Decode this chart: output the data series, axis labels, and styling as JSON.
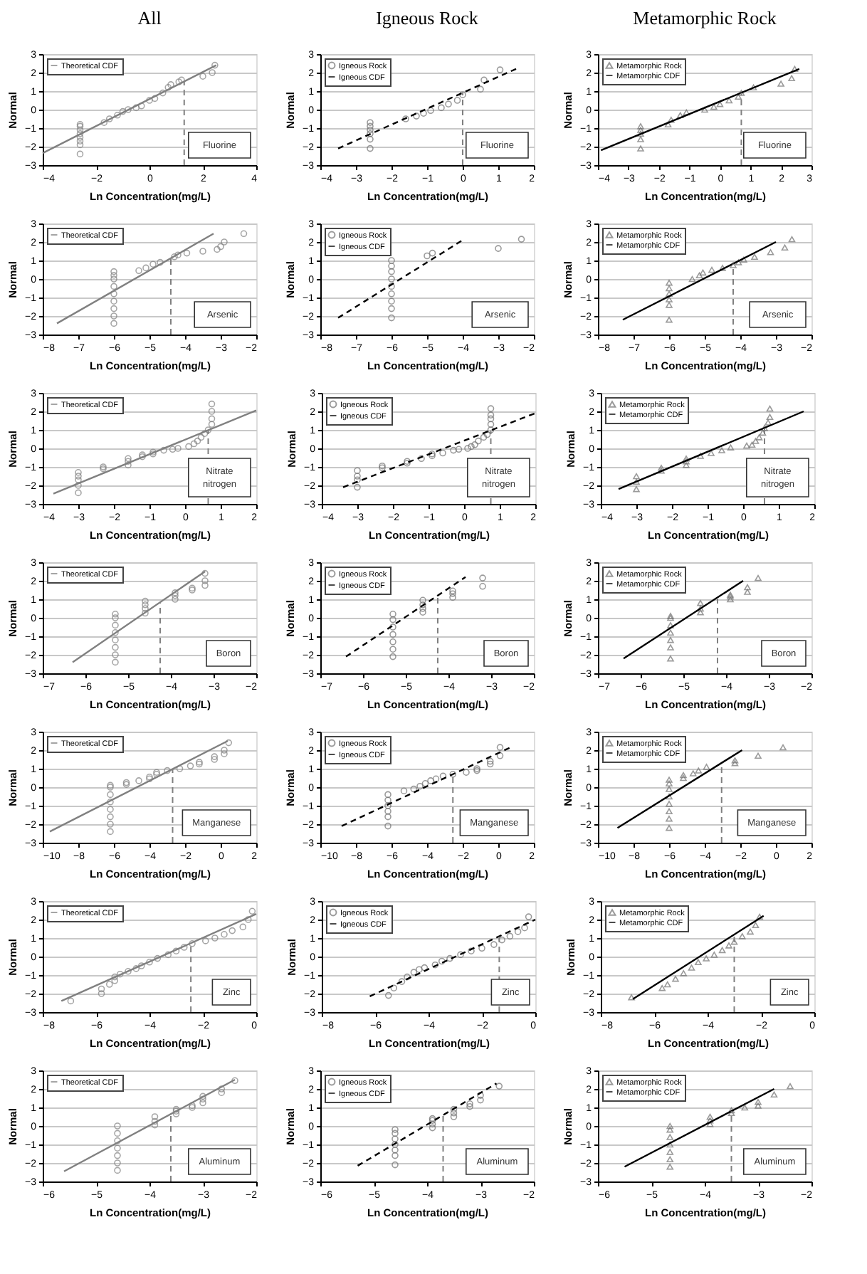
{
  "chart_data": [
    {
      "type": "scatter",
      "title": "All",
      "xlabel": "Ln Concentration(mg/L)",
      "ylabel": "Normal",
      "xlim": [
        -4,
        4
      ],
      "xticks": [
        -4,
        -2,
        0,
        2,
        4
      ],
      "ylim": [
        -3,
        3
      ],
      "yticks": [
        -3,
        -2,
        -1,
        0,
        1,
        2,
        3
      ],
      "grid": "y",
      "legend": "top left",
      "annotations": [
        "Fluorine"
      ],
      "ref_lines": [
        {
          "axis": "x",
          "value": 1.3,
          "color": "#808080",
          "line_style": "dashed"
        }
      ],
      "series": [
        {
          "type": "scatter",
          "marker": "circle",
          "color": "#808080",
          "x": [
            -2.6,
            -2.6,
            -2.6,
            -2.6,
            -2.6,
            -2.6,
            -2.6,
            -2.6,
            -1.7,
            -1.5,
            -1.2,
            -1,
            -0.8,
            -0.5,
            -0.3,
            0,
            0.2,
            0.5,
            0.7,
            0.8,
            1.1,
            1.2,
            2,
            2.35,
            2.45
          ],
          "values": [
            -2.4,
            -1.9,
            -1.7,
            -1.5,
            -1.3,
            -1.1,
            -0.9,
            -0.8,
            -0.7,
            -0.5,
            -0.3,
            -0.1,
            0,
            0.1,
            0.2,
            0.5,
            0.6,
            0.9,
            1.2,
            1.35,
            1.5,
            1.6,
            1.8,
            2,
            2.4
          ]
        },
        {
          "name": "Theoretical CDF",
          "type": "line",
          "line_style": "solid",
          "color": "#808080",
          "x": [
            -4,
            2.5
          ],
          "values": [
            -2.35,
            2.4
          ]
        }
      ]
    },
    {
      "type": "scatter",
      "title": "Igneous Rock",
      "xlabel": "Ln Concentration(mg/L)",
      "ylabel": "Normal",
      "xlim": [
        -4,
        2
      ],
      "xticks": [
        -4,
        -3,
        -2,
        -1,
        0,
        1,
        2
      ],
      "ylim": [
        -3,
        3
      ],
      "yticks": [
        -3,
        -2,
        -1,
        0,
        1,
        2,
        3
      ],
      "grid": "y",
      "legend": "top left",
      "annotations": [
        "Fluorine"
      ],
      "ref_lines": [
        {
          "axis": "x",
          "value": 0,
          "color": "#808080",
          "line_style": "dashed"
        }
      ],
      "series": [
        {
          "name": "Igneous Rock",
          "type": "scatter",
          "marker": "circle",
          "color": "#707070",
          "x": [
            -2.6,
            -2.6,
            -2.6,
            -2.6,
            -2.6,
            -2.6,
            -1.6,
            -1.3,
            -1.1,
            -0.9,
            -0.6,
            -0.4,
            -0.15,
            0,
            0.5,
            0.6,
            1.05
          ],
          "values": [
            -2.1,
            -1.6,
            -1.3,
            -1.1,
            -0.9,
            -0.7,
            -0.5,
            -0.35,
            -0.2,
            -0.05,
            0.1,
            0.3,
            0.5,
            0.8,
            1.1,
            1.6,
            2.15
          ]
        },
        {
          "name": "Igneous CDF",
          "type": "line",
          "line_style": "dashed",
          "color": "#000000",
          "x": [
            -3.5,
            1.5
          ],
          "values": [
            -2.1,
            2.2
          ]
        }
      ]
    },
    {
      "type": "scatter",
      "title": "Metamorphic Rock",
      "xlabel": "Ln Concentration(mg/L)",
      "ylabel": "Normal",
      "xlim": [
        -4,
        3
      ],
      "xticks": [
        -4,
        -3,
        -2,
        -1,
        0,
        1,
        2,
        3
      ],
      "ylim": [
        -3,
        3
      ],
      "yticks": [
        -3,
        -2,
        -1,
        0,
        1,
        2,
        3
      ],
      "grid": "y",
      "legend": "top left",
      "annotations": [
        "Fluorine"
      ],
      "ref_lines": [
        {
          "axis": "x",
          "value": 0.7,
          "color": "#808080",
          "line_style": "dashed"
        }
      ],
      "series": [
        {
          "name": "Metamorphic Rock",
          "type": "scatter",
          "marker": "triangle",
          "color": "#707070",
          "x": [
            -2.6,
            -2.6,
            -2.6,
            -2.6,
            -2.6,
            -1.7,
            -1.6,
            -1.3,
            -1.1,
            -0.5,
            -0.2,
            0,
            0.3,
            0.6,
            0.7,
            1.1,
            2,
            2.35,
            2.45
          ],
          "values": [
            -2.1,
            -1.6,
            -1.3,
            -1.1,
            -0.9,
            -0.8,
            -0.55,
            -0.3,
            -0.15,
            0,
            0.15,
            0.3,
            0.5,
            0.7,
            0.9,
            1.2,
            1.4,
            1.7,
            2.2
          ]
        },
        {
          "name": "Metamorphic CDF",
          "type": "line",
          "line_style": "solid",
          "color": "#000000",
          "x": [
            -3.9,
            2.6
          ],
          "values": [
            -2.2,
            2.2
          ]
        }
      ]
    },
    {
      "type": "scatter",
      "xlabel": "Ln Concentration(mg/L)",
      "ylabel": "Normal",
      "xlim": [
        -8,
        -2
      ],
      "xticks": [
        -8,
        -7,
        -6,
        -5,
        -4,
        -3,
        -2
      ],
      "ylim": [
        -3,
        3
      ],
      "yticks": [
        -3,
        -2,
        -1,
        0,
        1,
        2,
        3
      ],
      "grid": "y",
      "legend": "top left",
      "annotations": [
        "Arsenic"
      ],
      "ref_lines": [
        {
          "axis": "x",
          "value": -4.4,
          "color": "#808080",
          "line_style": "dashed"
        }
      ],
      "series": [
        {
          "type": "scatter",
          "marker": "circle",
          "color": "#808080",
          "x": [
            -6,
            -6,
            -6,
            -6,
            -6,
            -6,
            -6,
            -6,
            -6,
            -5.3,
            -5.1,
            -4.9,
            -4.7,
            -4.3,
            -4.2,
            -3.95,
            -3.5,
            -3.1,
            -3,
            -2.9,
            -2.35
          ],
          "values": [
            -2.4,
            -2,
            -1.6,
            -1.2,
            -0.8,
            -0.4,
            0,
            0.2,
            0.4,
            0.45,
            0.6,
            0.8,
            0.9,
            1.2,
            1.3,
            1.4,
            1.5,
            1.6,
            1.75,
            2,
            2.45
          ]
        },
        {
          "name": "Theoretical CDF",
          "type": "line",
          "line_style": "solid",
          "color": "#808080",
          "x": [
            -7.6,
            -3.2
          ],
          "values": [
            -2.4,
            2.45
          ]
        }
      ]
    },
    {
      "type": "scatter",
      "xlabel": "Ln Concentration(mg/L)",
      "ylabel": "Normal",
      "xlim": [
        -8,
        -2
      ],
      "xticks": [
        -8,
        -7,
        -6,
        -5,
        -4,
        -3,
        -2
      ],
      "ylim": [
        -3,
        3
      ],
      "yticks": [
        -3,
        -2,
        -1,
        0,
        1,
        2,
        3
      ],
      "grid": "y",
      "legend": "top left",
      "annotations": [
        "Arsenic"
      ],
      "series": [
        {
          "name": "Igneous Rock",
          "type": "scatter",
          "marker": "circle",
          "color": "#707070",
          "x": [
            -6,
            -6,
            -6,
            -6,
            -6,
            -6,
            -6,
            -6,
            -6,
            -5,
            -4.85,
            -3,
            -2.35
          ],
          "values": [
            -2.1,
            -1.6,
            -1.2,
            -0.8,
            -0.4,
            0,
            0.4,
            0.7,
            1,
            1.25,
            1.4,
            1.65,
            2.15
          ]
        },
        {
          "name": "Igneous CDF",
          "type": "line",
          "line_style": "dashed",
          "color": "#000000",
          "x": [
            -7.5,
            -4
          ],
          "values": [
            -2.1,
            2.1
          ]
        }
      ]
    },
    {
      "type": "scatter",
      "xlabel": "Ln Concentration(mg/L)",
      "ylabel": "Normal",
      "xlim": [
        -8,
        -2
      ],
      "xticks": [
        -8,
        -7,
        -6,
        -5,
        -4,
        -3,
        -2
      ],
      "ylim": [
        -3,
        3
      ],
      "yticks": [
        -3,
        -2,
        -1,
        0,
        1,
        2,
        3
      ],
      "grid": "y",
      "legend": "top left",
      "annotations": [
        "Arsenic"
      ],
      "ref_lines": [
        {
          "axis": "x",
          "value": -4.2,
          "color": "#808080",
          "line_style": "dashed"
        }
      ],
      "series": [
        {
          "name": "Metamorphic Rock",
          "type": "scatter",
          "marker": "triangle",
          "color": "#707070",
          "x": [
            -6,
            -6,
            -6,
            -6,
            -6,
            -6,
            -5.35,
            -5.15,
            -5.05,
            -4.8,
            -4.5,
            -4.2,
            -4.05,
            -3.9,
            -3.6,
            -3.15,
            -2.75,
            -2.55
          ],
          "values": [
            -2.2,
            -1.4,
            -1.1,
            -0.8,
            -0.5,
            -0.2,
            0,
            0.2,
            0.35,
            0.5,
            0.6,
            0.75,
            0.9,
            1.05,
            1.2,
            1.45,
            1.7,
            2.15
          ]
        },
        {
          "name": "Metamorphic CDF",
          "type": "line",
          "line_style": "solid",
          "color": "#000000",
          "x": [
            -7.3,
            -3
          ],
          "values": [
            -2.2,
            2
          ]
        }
      ]
    },
    {
      "type": "scatter",
      "xlabel": "Ln Concentration(mg/L)",
      "ylabel": "Normal",
      "xlim": [
        -4,
        2
      ],
      "xticks": [
        -4,
        -3,
        -2,
        -1,
        0,
        1,
        2
      ],
      "ylim": [
        -3,
        3
      ],
      "yticks": [
        -3,
        -2,
        -1,
        0,
        1,
        2,
        3
      ],
      "grid": "y",
      "legend": "top left",
      "annotations": [
        "Nitrate nitrogen"
      ],
      "ref_lines": [
        {
          "axis": "x",
          "value": 0.65,
          "color": "#808080",
          "line_style": "dashed"
        }
      ],
      "series": [
        {
          "type": "scatter",
          "marker": "circle",
          "color": "#808080",
          "x": [
            -3,
            -3,
            -3,
            -3,
            -3,
            -2.3,
            -2.3,
            -1.6,
            -1.6,
            -1.6,
            -1.2,
            -1.2,
            -0.9,
            -0.9,
            -0.6,
            -0.35,
            -0.2,
            0.1,
            0.25,
            0.35,
            0.45,
            0.55,
            0.65,
            0.75,
            0.75,
            0.75,
            0.75
          ],
          "values": [
            -2.4,
            -2,
            -1.7,
            -1.5,
            -1.3,
            -1.1,
            -1,
            -0.9,
            -0.7,
            -0.55,
            -0.45,
            -0.35,
            -0.3,
            -0.2,
            -0.1,
            -0.05,
            0,
            0.1,
            0.25,
            0.4,
            0.6,
            0.8,
            1,
            1.3,
            1.6,
            2,
            2.4
          ]
        },
        {
          "name": "Theoretical CDF",
          "type": "line",
          "line_style": "solid",
          "color": "#808080",
          "x": [
            -3.7,
            2
          ],
          "values": [
            -2.45,
            2.05
          ]
        }
      ]
    },
    {
      "type": "scatter",
      "xlabel": "Ln Concentration(mg/L)",
      "ylabel": "Normal",
      "xlim": [
        -4,
        2
      ],
      "xticks": [
        -4,
        -3,
        -2,
        -1,
        0,
        1,
        2
      ],
      "ylim": [
        -3,
        3
      ],
      "yticks": [
        -3,
        -2,
        -1,
        0,
        1,
        2,
        3
      ],
      "grid": "y",
      "legend": "top left",
      "annotations": [
        "Nitrate nitrogen"
      ],
      "ref_lines": [
        {
          "axis": "x",
          "value": 0.75,
          "color": "#808080",
          "line_style": "dashed"
        }
      ],
      "series": [
        {
          "name": "Igneous Rock",
          "type": "scatter",
          "marker": "circle",
          "color": "#707070",
          "x": [
            -3,
            -3,
            -3,
            -3,
            -2.3,
            -2.3,
            -1.6,
            -1.6,
            -1.2,
            -0.9,
            -0.9,
            -0.6,
            -0.3,
            -0.15,
            0.1,
            0.2,
            0.3,
            0.4,
            0.55,
            0.65,
            0.75,
            0.75,
            0.75,
            0.75,
            0.75
          ],
          "values": [
            -2.1,
            -1.7,
            -1.5,
            -1.2,
            -1.05,
            -0.95,
            -0.8,
            -0.7,
            -0.55,
            -0.4,
            -0.3,
            -0.25,
            -0.1,
            -0.05,
            0,
            0.1,
            0.2,
            0.4,
            0.6,
            0.75,
            1,
            1.3,
            1.6,
            1.8,
            2.15
          ]
        },
        {
          "name": "Igneous CDF",
          "type": "line",
          "line_style": "dashed",
          "color": "#000000",
          "x": [
            -3.4,
            2
          ],
          "values": [
            -2.1,
            1.9
          ]
        }
      ]
    },
    {
      "type": "scatter",
      "xlabel": "Ln Concentration(mg/L)",
      "ylabel": "Normal",
      "xlim": [
        -4,
        2
      ],
      "xticks": [
        -4,
        -3,
        -2,
        -1,
        0,
        1,
        2
      ],
      "ylim": [
        -3,
        3
      ],
      "yticks": [
        -3,
        -2,
        -1,
        0,
        1,
        2,
        3
      ],
      "grid": "y",
      "legend": "top left",
      "annotations": [
        "Nitrate nitrogen"
      ],
      "ref_lines": [
        {
          "axis": "x",
          "value": 0.6,
          "color": "#808080",
          "line_style": "dashed"
        }
      ],
      "series": [
        {
          "name": "Metamorphic Rock",
          "type": "scatter",
          "marker": "triangle",
          "color": "#707070",
          "x": [
            -3,
            -3,
            -3,
            -2.3,
            -2.3,
            -1.6,
            -1.6,
            -1.6,
            -1.2,
            -0.9,
            -0.6,
            -0.35,
            0.1,
            0.25,
            0.35,
            0.45,
            0.55,
            0.6,
            0.7,
            0.75,
            0.75
          ],
          "values": [
            -2.2,
            -1.8,
            -1.5,
            -1.2,
            -1.05,
            -0.9,
            -0.7,
            -0.55,
            -0.4,
            -0.25,
            -0.1,
            0.05,
            0.15,
            0.2,
            0.4,
            0.6,
            0.85,
            1.1,
            1.4,
            1.7,
            2.15
          ]
        },
        {
          "name": "Metamorphic CDF",
          "type": "line",
          "line_style": "solid",
          "color": "#000000",
          "x": [
            -3.5,
            1.7
          ],
          "values": [
            -2.2,
            2
          ]
        }
      ]
    },
    {
      "type": "scatter",
      "xlabel": "Ln Concentration(mg/L)",
      "ylabel": "Normal",
      "xlim": [
        -7,
        -2
      ],
      "xticks": [
        -7,
        -6,
        -5,
        -4,
        -3,
        -2
      ],
      "ylim": [
        -3,
        3
      ],
      "yticks": [
        -3,
        -2,
        -1,
        0,
        1,
        2,
        3
      ],
      "grid": "y",
      "legend": "top left",
      "annotations": [
        "Boron"
      ],
      "ref_lines": [
        {
          "axis": "x",
          "value": -4.25,
          "color": "#808080",
          "line_style": "dashed"
        }
      ],
      "series": [
        {
          "type": "scatter",
          "marker": "circle",
          "color": "#808080",
          "x": [
            -5.3,
            -5.3,
            -5.3,
            -5.3,
            -5.3,
            -5.3,
            -5.3,
            -5.3,
            -4.6,
            -4.6,
            -4.6,
            -4.6,
            -3.9,
            -3.9,
            -3.9,
            -3.5,
            -3.5,
            -3.2,
            -3.2,
            -3.2
          ],
          "values": [
            -2.4,
            -2,
            -1.6,
            -1.2,
            -0.8,
            -0.4,
            0,
            0.2,
            0.25,
            0.5,
            0.7,
            0.9,
            1,
            1.2,
            1.35,
            1.5,
            1.6,
            1.75,
            2,
            2.4
          ]
        },
        {
          "name": "Theoretical CDF",
          "type": "line",
          "line_style": "solid",
          "color": "#808080",
          "x": [
            -6.3,
            -3.2
          ],
          "values": [
            -2.4,
            2.5
          ]
        }
      ]
    },
    {
      "type": "scatter",
      "xlabel": "Ln Concentration(mg/L)",
      "ylabel": "Normal",
      "xlim": [
        -7,
        -2
      ],
      "xticks": [
        -7,
        -6,
        -5,
        -4,
        -3,
        -2
      ],
      "ylim": [
        -3,
        3
      ],
      "yticks": [
        -3,
        -2,
        -1,
        0,
        1,
        2,
        3
      ],
      "grid": "y",
      "legend": "top left",
      "annotations": [
        "Boron"
      ],
      "ref_lines": [
        {
          "axis": "x",
          "value": -4.25,
          "color": "#808080",
          "line_style": "dashed"
        }
      ],
      "series": [
        {
          "name": "Igneous Rock",
          "type": "scatter",
          "marker": "circle",
          "color": "#707070",
          "x": [
            -5.3,
            -5.3,
            -5.3,
            -5.3,
            -5.3,
            -5.3,
            -5.3,
            -4.6,
            -4.6,
            -4.6,
            -4.6,
            -3.9,
            -3.9,
            -3.9,
            -3.2,
            -3.2
          ],
          "values": [
            -2.1,
            -1.7,
            -1.3,
            -0.9,
            -0.5,
            -0.1,
            0.2,
            0.3,
            0.5,
            0.7,
            0.95,
            1.1,
            1.3,
            1.45,
            1.7,
            2.15
          ]
        },
        {
          "name": "Igneous CDF",
          "type": "line",
          "line_style": "dashed",
          "color": "#000000",
          "x": [
            -6.4,
            -3.6
          ],
          "values": [
            -2.1,
            2.2
          ]
        }
      ]
    },
    {
      "type": "scatter",
      "xlabel": "Ln Concentration(mg/L)",
      "ylabel": "Normal",
      "xlim": [
        -7,
        -2
      ],
      "xticks": [
        -7,
        -6,
        -5,
        -4,
        -3,
        -2
      ],
      "ylim": [
        -3,
        3
      ],
      "yticks": [
        -3,
        -2,
        -1,
        0,
        1,
        2,
        3
      ],
      "grid": "y",
      "legend": "top left",
      "annotations": [
        "Boron"
      ],
      "ref_lines": [
        {
          "axis": "x",
          "value": -4.2,
          "color": "#808080",
          "line_style": "dashed"
        }
      ],
      "series": [
        {
          "name": "Metamorphic Rock",
          "type": "scatter",
          "marker": "triangle",
          "color": "#707070",
          "x": [
            -5.3,
            -5.3,
            -5.3,
            -5.3,
            -5.3,
            -5.3,
            -5.3,
            -4.6,
            -4.6,
            -4.6,
            -3.9,
            -3.9,
            -3.9,
            -3.5,
            -3.5,
            -3.25
          ],
          "values": [
            -2.2,
            -1.6,
            -1.2,
            -0.8,
            -0.4,
            0,
            0.1,
            0.3,
            0.5,
            0.8,
            1,
            1.15,
            1.25,
            1.4,
            1.65,
            2.15
          ]
        },
        {
          "name": "Metamorphic CDF",
          "type": "line",
          "line_style": "solid",
          "color": "#000000",
          "x": [
            -6.4,
            -3.6
          ],
          "values": [
            -2.2,
            2
          ]
        }
      ]
    },
    {
      "type": "scatter",
      "xlabel": "Ln Concentration(mg/L)",
      "ylabel": "Normal",
      "xlim": [
        -10,
        2
      ],
      "xticks": [
        -10,
        -8,
        -6,
        -4,
        -2,
        0,
        2
      ],
      "ylim": [
        -3,
        3
      ],
      "yticks": [
        -3,
        -2,
        -1,
        0,
        1,
        2,
        3
      ],
      "grid": "y",
      "legend": "top left",
      "annotations": [
        "Manganese"
      ],
      "ref_lines": [
        {
          "axis": "x",
          "value": -2.7,
          "color": "#808080",
          "line_style": "dashed"
        }
      ],
      "series": [
        {
          "type": "scatter",
          "marker": "circle",
          "color": "#808080",
          "x": [
            -6.2,
            -6.2,
            -6.2,
            -6.2,
            -6.2,
            -6.2,
            -6.2,
            -6.2,
            -5.3,
            -5.3,
            -4.6,
            -4,
            -4,
            -3.6,
            -3.6,
            -3,
            -2.3,
            -1.7,
            -1.2,
            -1.2,
            -0.35,
            -0.35,
            0.2,
            0.2,
            0.45
          ],
          "values": [
            -2.4,
            -2,
            -1.6,
            -1.2,
            -0.8,
            -0.4,
            0,
            0.1,
            0.15,
            0.25,
            0.35,
            0.45,
            0.55,
            0.7,
            0.8,
            0.9,
            1,
            1.15,
            1.25,
            1.35,
            1.5,
            1.65,
            1.8,
            2,
            2.4
          ]
        },
        {
          "name": "Theoretical CDF",
          "type": "line",
          "line_style": "solid",
          "color": "#808080",
          "x": [
            -9.6,
            0.4
          ],
          "values": [
            -2.4,
            2.5
          ]
        }
      ]
    },
    {
      "type": "scatter",
      "xlabel": "Ln Concentration(mg/L)",
      "ylabel": "Normal",
      "xlim": [
        -10,
        2
      ],
      "xticks": [
        -10,
        -8,
        -6,
        -4,
        -2,
        0,
        2
      ],
      "ylim": [
        -3,
        3
      ],
      "yticks": [
        -3,
        -2,
        -1,
        0,
        1,
        2,
        3
      ],
      "grid": "y",
      "legend": "top left",
      "annotations": [
        "Manganese"
      ],
      "ref_lines": [
        {
          "axis": "x",
          "value": -2.55,
          "color": "#808080",
          "line_style": "dashed"
        }
      ],
      "series": [
        {
          "name": "Igneous Rock",
          "type": "scatter",
          "marker": "circle",
          "color": "#707070",
          "x": [
            -6.2,
            -6.2,
            -6.2,
            -6.2,
            -6.2,
            -6.2,
            -5.3,
            -4.75,
            -4.4,
            -4.1,
            -3.8,
            -3.5,
            -3.1,
            -2.55,
            -1.8,
            -1.2,
            -1.2,
            -0.45,
            -0.45,
            0.1,
            0.1
          ],
          "values": [
            -2.1,
            -1.6,
            -1.3,
            -1,
            -0.7,
            -0.4,
            -0.2,
            -0.1,
            0.05,
            0.2,
            0.35,
            0.45,
            0.6,
            0.7,
            0.8,
            0.9,
            1,
            1.25,
            1.4,
            1.7,
            2.15
          ]
        },
        {
          "name": "Igneous CDF",
          "type": "line",
          "line_style": "dashed",
          "color": "#000000",
          "x": [
            -8.8,
            0.8
          ],
          "values": [
            -2.1,
            2.2
          ]
        }
      ]
    },
    {
      "type": "scatter",
      "xlabel": "Ln Concentration(mg/L)",
      "ylabel": "Normal",
      "xlim": [
        -10,
        2
      ],
      "xticks": [
        -10,
        -8,
        -6,
        -4,
        -2,
        0,
        2
      ],
      "ylim": [
        -3,
        3
      ],
      "yticks": [
        -3,
        -2,
        -1,
        0,
        1,
        2,
        3
      ],
      "grid": "y",
      "legend": "top left",
      "annotations": [
        "Manganese"
      ],
      "ref_lines": [
        {
          "axis": "x",
          "value": -3.05,
          "color": "#808080",
          "line_style": "dashed"
        }
      ],
      "series": [
        {
          "name": "Metamorphic Rock",
          "type": "scatter",
          "marker": "triangle",
          "color": "#707070",
          "x": [
            -6,
            -6,
            -6,
            -6,
            -6,
            -6,
            -6,
            -6,
            -5.2,
            -5.2,
            -4.65,
            -4.35,
            -3.9,
            -2.3,
            -2.3,
            -1,
            0.4
          ],
          "values": [
            -2.2,
            -1.7,
            -1.3,
            -0.9,
            -0.5,
            -0.1,
            0.2,
            0.4,
            0.5,
            0.65,
            0.75,
            0.9,
            1.1,
            1.3,
            1.45,
            1.7,
            2.15
          ]
        },
        {
          "name": "Metamorphic CDF",
          "type": "line",
          "line_style": "solid",
          "color": "#000000",
          "x": [
            -8.9,
            -1.9
          ],
          "values": [
            -2.2,
            2
          ]
        }
      ]
    },
    {
      "type": "scatter",
      "xlabel": "Ln Concentration(mg/L)",
      "ylabel": "Normal",
      "xlim": [
        -8,
        0
      ],
      "xticks": [
        -8,
        -6,
        -4,
        -2,
        0
      ],
      "ylim": [
        -3,
        3
      ],
      "yticks": [
        -3,
        -2,
        -1,
        0,
        1,
        2,
        3
      ],
      "grid": "y",
      "legend": "top left",
      "annotations": [
        "Zinc"
      ],
      "ref_lines": [
        {
          "axis": "x",
          "value": -2.45,
          "color": "#808080",
          "line_style": "dashed"
        }
      ],
      "series": [
        {
          "type": "scatter",
          "marker": "circle",
          "color": "#808080",
          "x": [
            -6.95,
            -5.8,
            -5.8,
            -5.5,
            -5.3,
            -5.3,
            -5.1,
            -4.8,
            -4.5,
            -4.3,
            -4,
            -3.7,
            -3.3,
            -3,
            -2.7,
            -2.4,
            -1.9,
            -1.55,
            -1.2,
            -0.9,
            -0.5,
            -0.3,
            -0.15
          ],
          "values": [
            -2.4,
            -2,
            -1.75,
            -1.5,
            -1.3,
            -1.1,
            -0.95,
            -0.8,
            -0.65,
            -0.5,
            -0.3,
            -0.1,
            0.1,
            0.3,
            0.5,
            0.7,
            0.85,
            1,
            1.2,
            1.4,
            1.6,
            2,
            2.45
          ]
        },
        {
          "name": "Theoretical CDF",
          "type": "line",
          "line_style": "solid",
          "color": "#808080",
          "x": [
            -7.3,
            0
          ],
          "values": [
            -2.4,
            2.3
          ]
        }
      ]
    },
    {
      "type": "scatter",
      "xlabel": "Ln Concentration(mg/L)",
      "ylabel": "Normal",
      "xlim": [
        -8,
        0
      ],
      "xticks": [
        -8,
        -6,
        -4,
        -2,
        0
      ],
      "ylim": [
        -3,
        3
      ],
      "yticks": [
        -3,
        -2,
        -1,
        0,
        1,
        2,
        3
      ],
      "grid": "y",
      "legend": "top left",
      "annotations": [
        "Zinc"
      ],
      "ref_lines": [
        {
          "axis": "x",
          "value": -1.35,
          "color": "#808080",
          "line_style": "dashed"
        }
      ],
      "series": [
        {
          "name": "Igneous Rock",
          "type": "scatter",
          "marker": "circle",
          "color": "#707070",
          "x": [
            -5.5,
            -5.3,
            -5,
            -4.8,
            -4.55,
            -4.35,
            -4.15,
            -3.75,
            -3.5,
            -3.2,
            -2.8,
            -2.4,
            -2,
            -1.55,
            -1.25,
            -0.95,
            -0.65,
            -0.4,
            -0.25
          ],
          "values": [
            -2.1,
            -1.7,
            -1.35,
            -1.1,
            -0.85,
            -0.7,
            -0.6,
            -0.45,
            -0.25,
            -0.1,
            0.1,
            0.3,
            0.45,
            0.65,
            0.9,
            1.1,
            1.35,
            1.55,
            2.15
          ]
        },
        {
          "name": "Igneous CDF",
          "type": "line",
          "line_style": "dashed",
          "color": "#000000",
          "x": [
            -6.2,
            0
          ],
          "values": [
            -2.15,
            2
          ]
        }
      ]
    },
    {
      "type": "scatter",
      "xlabel": "Ln Concentration(mg/L)",
      "ylabel": "Normal",
      "xlim": [
        -8,
        0
      ],
      "xticks": [
        -8,
        -6,
        -4,
        -2,
        0
      ],
      "ylim": [
        -3,
        3
      ],
      "yticks": [
        -3,
        -2,
        -1,
        0,
        1,
        2,
        3
      ],
      "grid": "y",
      "legend": "top left",
      "annotations": [
        "Zinc"
      ],
      "ref_lines": [
        {
          "axis": "x",
          "value": -3,
          "color": "#808080",
          "line_style": "dashed"
        }
      ],
      "series": [
        {
          "name": "Metamorphic Rock",
          "type": "scatter",
          "marker": "triangle",
          "color": "#707070",
          "x": [
            -6.85,
            -5.7,
            -5.5,
            -5.2,
            -4.9,
            -4.6,
            -4.35,
            -4.05,
            -3.75,
            -3.45,
            -3.2,
            -3,
            -2.7,
            -2.4,
            -2.2,
            -2.05
          ],
          "values": [
            -2.2,
            -1.7,
            -1.5,
            -1.2,
            -0.9,
            -0.6,
            -0.3,
            -0.1,
            0.1,
            0.35,
            0.6,
            0.8,
            1.1,
            1.35,
            1.7,
            2.15
          ]
        },
        {
          "name": "Metamorphic CDF",
          "type": "line",
          "line_style": "solid",
          "color": "#000000",
          "x": [
            -6.8,
            -1.9
          ],
          "values": [
            -2.3,
            2.2
          ]
        }
      ]
    },
    {
      "type": "scatter",
      "xlabel": "Ln Concentration(mg/L)",
      "ylabel": "Normal",
      "xlim": [
        -6,
        -2
      ],
      "xticks": [
        -6,
        -5,
        -4,
        -3,
        -2
      ],
      "ylim": [
        -3,
        3
      ],
      "yticks": [
        -3,
        -2,
        -1,
        0,
        1,
        2,
        3
      ],
      "grid": "y",
      "legend": "top left",
      "annotations": [
        "Aluminum"
      ],
      "ref_lines": [
        {
          "axis": "x",
          "value": -3.6,
          "color": "#808080",
          "line_style": "dashed"
        }
      ],
      "series": [
        {
          "type": "scatter",
          "marker": "circle",
          "color": "#808080",
          "x": [
            -4.6,
            -4.6,
            -4.6,
            -4.6,
            -4.6,
            -4.6,
            -4.6,
            -3.9,
            -3.9,
            -3.9,
            -3.5,
            -3.5,
            -3.5,
            -3.2,
            -3.2,
            -3,
            -3,
            -3,
            -2.65,
            -2.65,
            -2.4
          ],
          "values": [
            -2.4,
            -2,
            -1.6,
            -1.2,
            -0.8,
            -0.4,
            0,
            0.05,
            0.25,
            0.5,
            0.65,
            0.8,
            0.9,
            1,
            1.1,
            1.25,
            1.45,
            1.6,
            1.8,
            2,
            2.45
          ]
        },
        {
          "name": "Theoretical CDF",
          "type": "line",
          "line_style": "solid",
          "color": "#808080",
          "x": [
            -5.6,
            -2.4
          ],
          "values": [
            -2.45,
            2.5
          ]
        }
      ]
    },
    {
      "type": "scatter",
      "xlabel": "Ln Concentration(mg/L)",
      "ylabel": "Normal",
      "xlim": [
        -6,
        -2
      ],
      "xticks": [
        -6,
        -5,
        -4,
        -3,
        -2
      ],
      "ylim": [
        -3,
        3
      ],
      "yticks": [
        -3,
        -2,
        -1,
        0,
        1,
        2,
        3
      ],
      "grid": "y",
      "legend": "top left",
      "annotations": [
        "Aluminum"
      ],
      "ref_lines": [
        {
          "axis": "x",
          "value": -3.7,
          "color": "#808080",
          "line_style": "dashed"
        }
      ],
      "series": [
        {
          "name": "Igneous Rock",
          "type": "scatter",
          "marker": "circle",
          "color": "#707070",
          "x": [
            -4.6,
            -4.6,
            -4.6,
            -4.6,
            -4.6,
            -4.6,
            -4.6,
            -3.9,
            -3.9,
            -3.9,
            -3.9,
            -3.5,
            -3.5,
            -3.5,
            -3.2,
            -3.2,
            -3,
            -3,
            -2.65
          ],
          "values": [
            -2.1,
            -1.6,
            -1.3,
            -1,
            -0.7,
            -0.4,
            -0.2,
            -0.1,
            0.1,
            0.3,
            0.4,
            0.5,
            0.7,
            0.9,
            1.05,
            1.2,
            1.4,
            1.65,
            2.15
          ]
        },
        {
          "name": "Igneous CDF",
          "type": "line",
          "line_style": "dashed",
          "color": "#000000",
          "x": [
            -5.3,
            -2.7
          ],
          "values": [
            -2.15,
            2.3
          ]
        }
      ]
    },
    {
      "type": "scatter",
      "xlabel": "Ln Concentration(mg/L)",
      "ylabel": "Normal",
      "xlim": [
        -6,
        -2
      ],
      "xticks": [
        -6,
        -5,
        -4,
        -3,
        -2
      ],
      "ylim": [
        -3,
        3
      ],
      "yticks": [
        -3,
        -2,
        -1,
        0,
        1,
        2,
        3
      ],
      "grid": "y",
      "legend": "top left",
      "annotations": [
        "Aluminum"
      ],
      "ref_lines": [
        {
          "axis": "x",
          "value": -3.5,
          "color": "#808080",
          "line_style": "dashed"
        }
      ],
      "series": [
        {
          "name": "Metamorphic Rock",
          "type": "scatter",
          "marker": "triangle",
          "color": "#707070",
          "x": [
            -4.65,
            -4.65,
            -4.65,
            -4.65,
            -4.65,
            -4.65,
            -4.65,
            -3.9,
            -3.9,
            -3.9,
            -3.5,
            -3.5,
            -3.25,
            -3,
            -3,
            -2.7,
            -2.4
          ],
          "values": [
            -2.2,
            -1.8,
            -1.4,
            -1,
            -0.6,
            -0.2,
            0,
            0.1,
            0.3,
            0.5,
            0.7,
            0.85,
            1,
            1.1,
            1.3,
            1.7,
            2.15
          ]
        },
        {
          "name": "Metamorphic CDF",
          "type": "line",
          "line_style": "solid",
          "color": "#000000",
          "x": [
            -5.5,
            -2.7
          ],
          "values": [
            -2.2,
            2
          ]
        }
      ]
    }
  ]
}
